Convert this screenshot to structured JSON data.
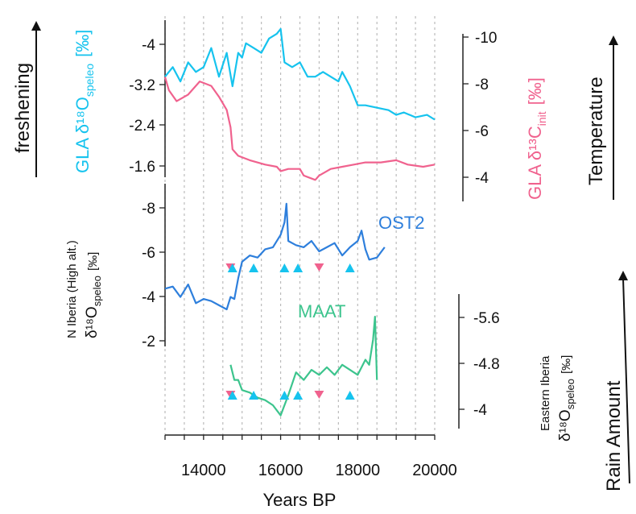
{
  "colors": {
    "cyan": "#16c3ee",
    "pink": "#f0628e",
    "blue": "#2e7fdc",
    "green": "#3cc48d",
    "axis": "#222222",
    "grid": "#bbbbbb"
  },
  "labels": {
    "freshening": "freshening",
    "temperature": "Temperature",
    "rain_amount": "Rain Amount",
    "gla_d18o": "GLA δ¹⁸O",
    "gla_d18o_sub": "speleo",
    "gla_d18o_unit": "[‰]",
    "gla_d13c": "GLA δ¹³C",
    "gla_d13c_sub": "init",
    "gla_d13c_unit": "[‰]",
    "n_iberia_line1": "N Iberia (High alt.)",
    "n_iberia_line2": "δ¹⁸O",
    "n_iberia_sub": "speleo",
    "n_iberia_unit": "[‰]",
    "e_iberia_line1": "Eastern Iberia",
    "e_iberia_line2": "δ¹⁸O",
    "e_iberia_sub": "speleo",
    "e_iberia_unit": "[‰]",
    "ost2": "OST2",
    "maat": "MAAT",
    "xlabel": "Years BP"
  },
  "chart_data": {
    "type": "line",
    "xlabel": "Years BP",
    "x_ticks": [
      14000,
      16000,
      18000,
      20000
    ],
    "x_grid_every": 500,
    "xlim": [
      13000,
      20000
    ],
    "grid": "vertical dashed",
    "panels": [
      {
        "id": "gla",
        "series": [
          {
            "name": "GLA δ18O speleo",
            "axis": "left",
            "ylim": [
              -1.5,
              -4.2
            ],
            "y_ticks": [
              "-4",
              "-3.2",
              "-2.4",
              "-1.6"
            ],
            "x": [
              13000,
              13200,
              13400,
              13600,
              13800,
              14000,
              14200,
              14400,
              14600,
              14750,
              14900,
              15000,
              15100,
              15300,
              15500,
              15700,
              15900,
              16000,
              16100,
              16300,
              16500,
              16700,
              16900,
              17100,
              17300,
              17500,
              17600,
              17800,
              18000,
              18200,
              18500,
              18800,
              19000,
              19200,
              19500,
              19800,
              20000
            ],
            "y": [
              -3.1,
              -3.3,
              -3.0,
              -3.4,
              -3.2,
              -3.3,
              -3.7,
              -3.1,
              -3.6,
              -2.9,
              -3.6,
              -3.5,
              -3.8,
              -3.7,
              -3.6,
              -3.9,
              -4.0,
              -4.1,
              -3.4,
              -3.3,
              -3.4,
              -3.1,
              -3.1,
              -3.2,
              -3.1,
              -3.0,
              -3.2,
              -2.9,
              -2.5,
              -2.5,
              -2.45,
              -2.4,
              -2.3,
              -2.35,
              -2.25,
              -2.3,
              -2.2
            ]
          },
          {
            "name": "GLA δ13C init",
            "axis": "right",
            "ylim": [
              -3.5,
              -10.5
            ],
            "y_ticks": [
              "-10",
              "-8",
              "-6",
              "-4"
            ],
            "x": [
              13000,
              13100,
              13300,
              13600,
              13900,
              14200,
              14400,
              14600,
              14700,
              14750,
              14900,
              15200,
              15600,
              15900,
              16000,
              16200,
              16500,
              16600,
              16900,
              17000,
              17300,
              17600,
              17900,
              18200,
              18600,
              19000,
              19300,
              19700,
              20000
            ],
            "y": [
              -9.0,
              -8.4,
              -7.9,
              -8.2,
              -8.8,
              -8.6,
              -8.1,
              -7.5,
              -6.7,
              -5.7,
              -5.4,
              -5.2,
              -5.0,
              -4.9,
              -4.7,
              -4.8,
              -4.8,
              -4.5,
              -4.3,
              -4.5,
              -4.8,
              -4.9,
              -5.0,
              -5.1,
              -5.1,
              -5.2,
              -5.0,
              -4.9,
              -5.0
            ]
          }
        ]
      },
      {
        "id": "n_iberia",
        "series": [
          {
            "name": "OST2",
            "axis": "left",
            "ylim": [
              -1.6,
              -8.6
            ],
            "y_ticks": [
              "-8",
              "-6",
              "-4",
              "-2"
            ],
            "x": [
              13000,
              13200,
              13400,
              13600,
              13800,
              14000,
              14200,
              14400,
              14600,
              14700,
              14800,
              14900,
              15000,
              15200,
              15400,
              15600,
              15800,
              16000,
              16100,
              16150,
              16200,
              16400,
              16600,
              16800,
              17000,
              17200,
              17400,
              17600,
              17800,
              18000,
              18100,
              18200,
              18300,
              18500,
              18700
            ],
            "y": [
              -4.0,
              -4.1,
              -3.6,
              -4.2,
              -3.3,
              -3.5,
              -3.4,
              -3.2,
              -3.0,
              -3.6,
              -3.5,
              -4.5,
              -5.3,
              -5.6,
              -5.5,
              -5.9,
              -6.0,
              -6.6,
              -7.2,
              -8.1,
              -6.3,
              -6.1,
              -6.0,
              -6.3,
              -5.8,
              -6.0,
              -6.2,
              -5.6,
              -6.0,
              -6.3,
              -6.8,
              -5.9,
              -5.4,
              -5.5,
              -6.0
            ]
          }
        ]
      },
      {
        "id": "e_iberia",
        "series": [
          {
            "name": "MAAT",
            "axis": "right",
            "ylim": [
              -3.75,
              -5.9
            ],
            "y_ticks": [
              "-5.6",
              "-4.8",
              "-4"
            ],
            "x": [
              14700,
              14800,
              14900,
              15000,
              15200,
              15400,
              15600,
              15800,
              16000,
              16200,
              16400,
              16600,
              16800,
              17000,
              17200,
              17400,
              17600,
              17800,
              18000,
              18200,
              18300,
              18400,
              18450,
              18500
            ],
            "y": [
              -4.9,
              -4.6,
              -4.6,
              -4.4,
              -4.35,
              -4.25,
              -4.2,
              -4.1,
              -3.9,
              -4.3,
              -4.75,
              -4.6,
              -4.8,
              -4.7,
              -4.85,
              -4.7,
              -4.9,
              -4.8,
              -4.7,
              -5.0,
              -4.9,
              -5.4,
              -5.85,
              -4.6
            ]
          }
        ]
      }
    ],
    "markers": {
      "down_triangles_pink": [
        14700,
        17000
      ],
      "up_triangles_cyan": [
        14750,
        15300,
        16100,
        16450,
        17800
      ]
    }
  }
}
